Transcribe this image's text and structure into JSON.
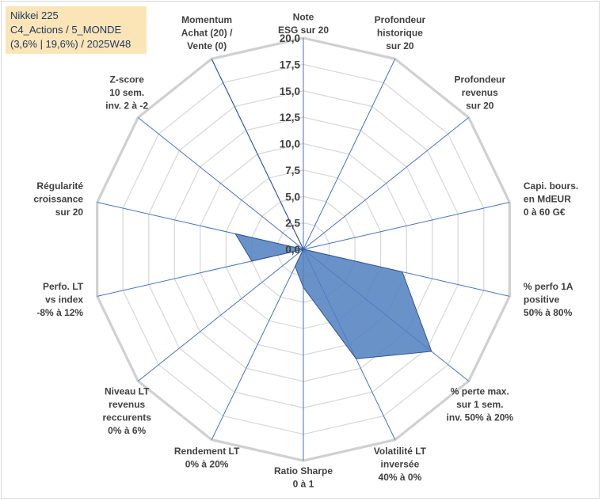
{
  "info_box": {
    "line1": "Nikkei 225",
    "line2": "C4_Actions / 5_MONDE",
    "line3": "(3,6% | 19,6%) / 2025W48"
  },
  "colors": {
    "fill": "#4f7fbf",
    "edge": "#2f5597",
    "grid": "#d9d9d9",
    "spoke": "#4472c4",
    "info_bg": "#fbe5b6"
  },
  "chart_data": {
    "type": "radar",
    "rmin": 0,
    "rmax": 20,
    "tick_step": 2.5,
    "tick_labels": [
      "0,0",
      "2,5",
      "5,0",
      "7,5",
      "10,0",
      "12,5",
      "15,0",
      "17,5",
      "20,0"
    ],
    "axes": [
      {
        "label": [
          "Note",
          "ESG sur 20"
        ]
      },
      {
        "label": [
          "Profondeur",
          "historique",
          "sur 20"
        ]
      },
      {
        "label": [
          "Profondeur",
          "revenus",
          "sur 20"
        ]
      },
      {
        "label": [
          "Capi. bours.",
          "en MdEUR",
          "0 à 60 G€"
        ]
      },
      {
        "label": [
          "% perfo 1A",
          "positive",
          "50% à 80%"
        ]
      },
      {
        "label": [
          "% perte max.",
          "sur 1 sem.",
          "inv. 50% à 20%"
        ]
      },
      {
        "label": [
          "Volatilité LT",
          "inversée",
          "40% à 0%"
        ]
      },
      {
        "label": [
          "Ratio Sharpe",
          "0 à 1"
        ]
      },
      {
        "label": [
          "Rendement LT",
          "0% à 20%"
        ]
      },
      {
        "label": [
          "Niveau LT",
          "revenus",
          "reccurents",
          "0% à 6%"
        ]
      },
      {
        "label": [
          "Perfo. LT",
          "vs index",
          "-8% à 12%"
        ]
      },
      {
        "label": [
          "Régularité",
          "croissance",
          "sur 20"
        ]
      },
      {
        "label": [
          "Z-score",
          "10 sem.",
          "inv. 2 à -2"
        ]
      },
      {
        "label": [
          "Momentum",
          "Achat (20) /",
          "Vente (0)"
        ]
      }
    ],
    "series": [
      {
        "name": "Nikkei 225",
        "values": [
          0,
          0,
          0,
          0,
          9.6,
          15.5,
          11.5,
          3.6,
          1.8,
          0,
          5.0,
          6.6,
          0,
          19.9
        ]
      }
    ]
  }
}
